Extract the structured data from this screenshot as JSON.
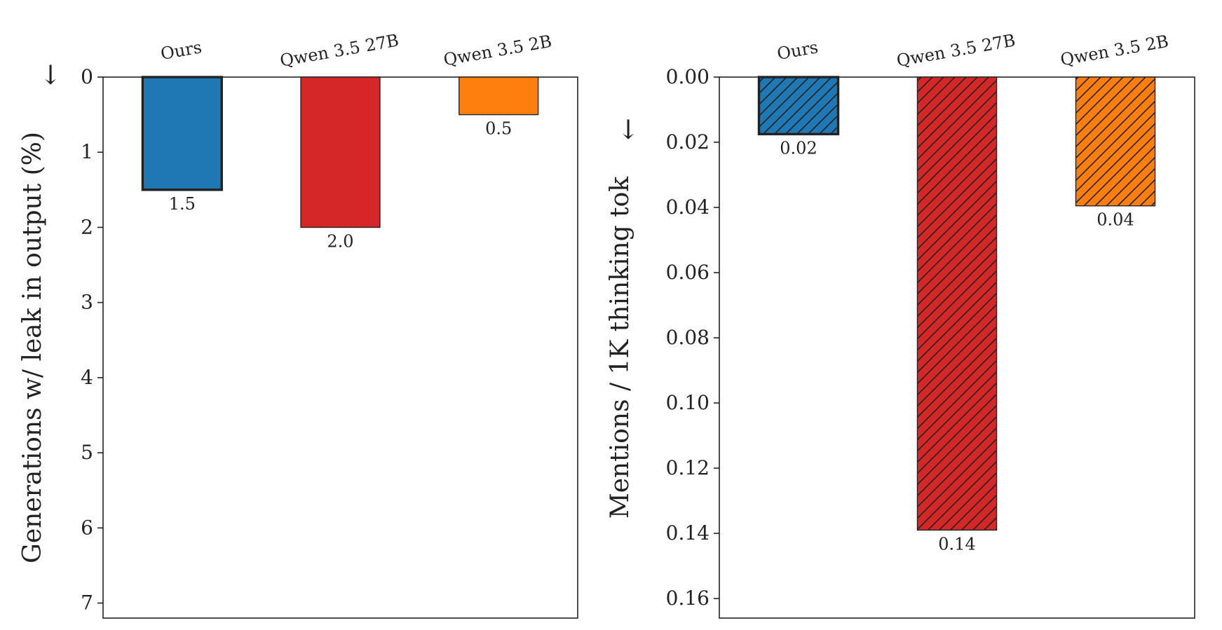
{
  "chart_data": [
    {
      "type": "bar",
      "categories": [
        "Ours",
        "Qwen 3.5 27B",
        "Qwen 3.5 2B"
      ],
      "values": [
        1.5,
        2.0,
        0.5
      ],
      "value_labels": [
        "1.5",
        "2.0",
        "0.5"
      ],
      "colors": [
        "#1f77b4",
        "#d62728",
        "#ff7f0e"
      ],
      "highlighted": [
        true,
        false,
        false
      ],
      "hatch": false,
      "title": "",
      "xlabel": "",
      "ylabel": "Generations w/ leak in output (%)",
      "ylabel_arrow": "↓",
      "ylim": [
        0,
        7.2
      ],
      "y_inverted": true,
      "yticks": [
        0,
        1,
        2,
        3,
        4,
        5,
        6,
        7
      ],
      "ytick_labels": [
        "0",
        "1",
        "2",
        "3",
        "4",
        "5",
        "6",
        "7"
      ],
      "category_axis_position": "top",
      "grid": false,
      "legend": "none"
    },
    {
      "type": "bar",
      "categories": [
        "Ours",
        "Qwen 3.5 27B",
        "Qwen 3.5 2B"
      ],
      "values": [
        0.0175,
        0.139,
        0.0395
      ],
      "value_labels": [
        "0.02",
        "0.14",
        "0.04"
      ],
      "colors": [
        "#1f77b4",
        "#d62728",
        "#ff7f0e"
      ],
      "highlighted": [
        true,
        false,
        false
      ],
      "hatch": true,
      "title": "",
      "xlabel": "",
      "ylabel": "Mentions / 1K thinking tok",
      "ylabel_arrow": "↓",
      "ylim": [
        0,
        0.166
      ],
      "y_inverted": true,
      "yticks": [
        0,
        0.02,
        0.04,
        0.06,
        0.08,
        0.1,
        0.12,
        0.14,
        0.16
      ],
      "ytick_labels": [
        "0.00",
        "0.02",
        "0.04",
        "0.06",
        "0.08",
        "0.10",
        "0.12",
        "0.14",
        "0.16"
      ],
      "category_axis_position": "top",
      "grid": false,
      "legend": "none"
    }
  ]
}
